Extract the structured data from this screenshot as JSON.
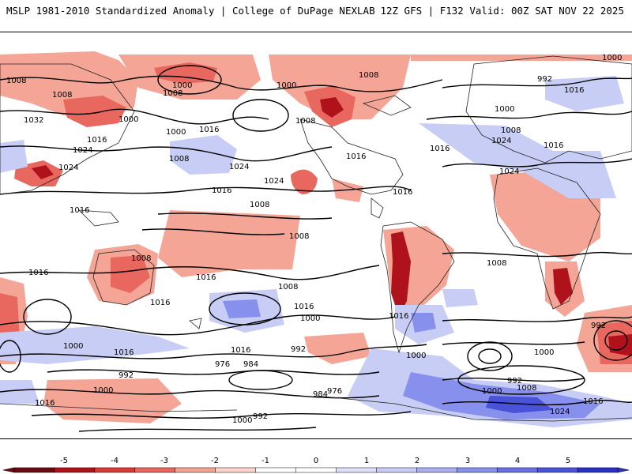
{
  "header": {
    "title_left": "MSLP 1981-2010 Standardized Anomaly | College of DuPage NEXLAB",
    "title_right": "12Z GFS | F132 Valid: 00Z SAT NOV 22 2025"
  },
  "colors": {
    "strong_neg": "#b0121b",
    "neg": "#e8685f",
    "weak_neg": "#f4a596",
    "weak_pos": "#c8cdf5",
    "pos": "#8790ec",
    "strong_pos": "#4a52d8",
    "contour": "#000000",
    "land": "#222222"
  },
  "contour_labels": [
    "1008",
    "1008",
    "1032",
    "1016",
    "1024",
    "1024",
    "1016",
    "1000",
    "1000",
    "1008",
    "1000",
    "1016",
    "1008",
    "1024",
    "1024",
    "1000",
    "1008",
    "1016",
    "1008",
    "1016",
    "1016",
    "1000",
    "992",
    "1016",
    "1000",
    "1008",
    "1024",
    "1016",
    "1024",
    "1016",
    "1008",
    "1008",
    "1008",
    "1016",
    "1016",
    "1016",
    "1008",
    "1016",
    "1000",
    "1008",
    "1016",
    "1016",
    "1016",
    "1000",
    "992",
    "1000",
    "976",
    "984",
    "992",
    "1000",
    "1000",
    "992",
    "1016",
    "984",
    "976",
    "1000",
    "992",
    "1008",
    "1024",
    "1016",
    "1000",
    "992"
  ],
  "colorbar": {
    "ticks": [
      "-5",
      "-4",
      "-3",
      "-2",
      "-1",
      "0",
      "1",
      "2",
      "3",
      "4",
      "5"
    ],
    "segment_colors": [
      "#6b0a10",
      "#b0121b",
      "#d83a35",
      "#e8685f",
      "#f4a596",
      "#fbd4cb",
      "#ffffff",
      "#ffffff",
      "#dde0f8",
      "#c8cdf5",
      "#a9aff0",
      "#8790ec",
      "#6870e2",
      "#4a52d8",
      "#2a30c4"
    ]
  }
}
